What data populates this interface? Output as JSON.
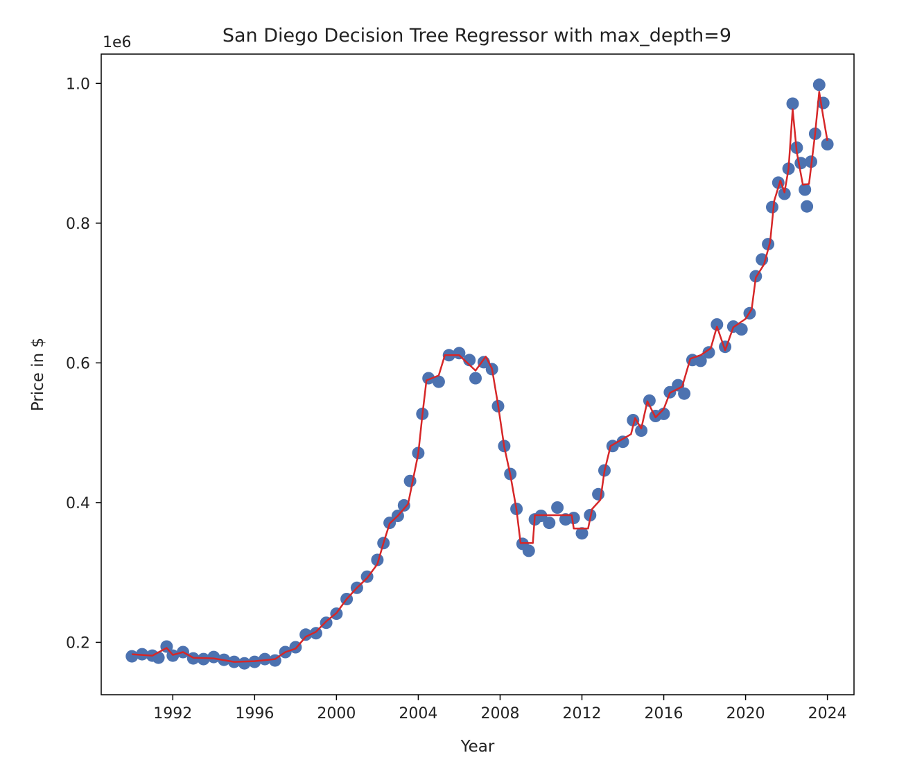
{
  "chart_data": {
    "type": "scatter",
    "title": "San Diego Decision Tree Regressor with max_depth=9",
    "xlabel": "Year",
    "ylabel": "Price in $",
    "y_multiplier_label": "1e6",
    "xlim": [
      1988.5,
      2025.3
    ],
    "ylim": [
      125000,
      1042000
    ],
    "x_ticks": [
      1992,
      1996,
      2000,
      2004,
      2008,
      2012,
      2016,
      2020,
      2024
    ],
    "x_tick_labels": [
      "1992",
      "1996",
      "2000",
      "2004",
      "2008",
      "2012",
      "2016",
      "2020",
      "2024"
    ],
    "y_ticks": [
      200000,
      400000,
      600000,
      800000,
      1000000
    ],
    "y_tick_labels": [
      "0.2",
      "0.4",
      "0.6",
      "0.8",
      "1.0"
    ],
    "grid": false,
    "colors": {
      "scatter": "#4c72b0",
      "fit_line": "#d62728",
      "axes": "#000000"
    },
    "series": [
      {
        "kind": "scatter",
        "points": [
          [
            1990.0,
            180000
          ],
          [
            1990.5,
            183000
          ],
          [
            1991.0,
            181000
          ],
          [
            1991.3,
            178000
          ],
          [
            1991.7,
            194000
          ],
          [
            1992.0,
            181000
          ],
          [
            1992.5,
            186000
          ],
          [
            1993.0,
            177000
          ],
          [
            1993.5,
            176000
          ],
          [
            1994.0,
            179000
          ],
          [
            1994.5,
            175000
          ],
          [
            1995.0,
            172000
          ],
          [
            1995.5,
            170000
          ],
          [
            1996.0,
            172000
          ],
          [
            1996.5,
            176000
          ],
          [
            1997.0,
            174000
          ],
          [
            1997.5,
            186000
          ],
          [
            1998.0,
            193000
          ],
          [
            1998.5,
            211000
          ],
          [
            1999.0,
            213000
          ],
          [
            1999.5,
            228000
          ],
          [
            2000.0,
            241000
          ],
          [
            2000.5,
            262000
          ],
          [
            2001.0,
            278000
          ],
          [
            2001.5,
            294000
          ],
          [
            2002.0,
            318000
          ],
          [
            2002.3,
            342000
          ],
          [
            2002.6,
            371000
          ],
          [
            2003.0,
            381000
          ],
          [
            2003.3,
            396000
          ],
          [
            2003.6,
            431000
          ],
          [
            2004.0,
            471000
          ],
          [
            2004.2,
            527000
          ],
          [
            2004.5,
            578000
          ],
          [
            2005.0,
            573000
          ],
          [
            2005.5,
            611000
          ],
          [
            2006.0,
            614000
          ],
          [
            2006.5,
            604000
          ],
          [
            2006.8,
            578000
          ],
          [
            2007.2,
            601000
          ],
          [
            2007.6,
            591000
          ],
          [
            2007.9,
            538000
          ],
          [
            2008.2,
            481000
          ],
          [
            2008.5,
            441000
          ],
          [
            2008.8,
            391000
          ],
          [
            2009.1,
            341000
          ],
          [
            2009.4,
            331000
          ],
          [
            2009.7,
            376000
          ],
          [
            2010.0,
            381000
          ],
          [
            2010.4,
            371000
          ],
          [
            2010.8,
            393000
          ],
          [
            2011.2,
            376000
          ],
          [
            2011.6,
            378000
          ],
          [
            2012.0,
            356000
          ],
          [
            2012.4,
            382000
          ],
          [
            2012.8,
            412000
          ],
          [
            2013.1,
            446000
          ],
          [
            2013.5,
            481000
          ],
          [
            2014.0,
            487000
          ],
          [
            2014.5,
            518000
          ],
          [
            2014.9,
            503000
          ],
          [
            2015.3,
            546000
          ],
          [
            2015.6,
            524000
          ],
          [
            2016.0,
            527000
          ],
          [
            2016.3,
            558000
          ],
          [
            2016.7,
            568000
          ],
          [
            2017.0,
            556000
          ],
          [
            2017.4,
            604000
          ],
          [
            2017.8,
            603000
          ],
          [
            2018.2,
            615000
          ],
          [
            2018.6,
            655000
          ],
          [
            2019.0,
            623000
          ],
          [
            2019.4,
            652000
          ],
          [
            2019.8,
            648000
          ],
          [
            2020.2,
            671000
          ],
          [
            2020.5,
            724000
          ],
          [
            2020.8,
            748000
          ],
          [
            2021.1,
            770000
          ],
          [
            2021.3,
            823000
          ],
          [
            2021.6,
            858000
          ],
          [
            2021.9,
            842000
          ],
          [
            2022.1,
            878000
          ],
          [
            2022.3,
            971000
          ],
          [
            2022.5,
            908000
          ],
          [
            2022.7,
            886000
          ],
          [
            2022.9,
            848000
          ],
          [
            2023.0,
            824000
          ],
          [
            2023.2,
            888000
          ],
          [
            2023.4,
            928000
          ],
          [
            2023.6,
            998000
          ],
          [
            2023.8,
            972000
          ],
          [
            2024.0,
            913000
          ]
        ]
      },
      {
        "kind": "line",
        "points": [
          [
            1990.0,
            183000
          ],
          [
            1991.0,
            181000
          ],
          [
            1991.7,
            192000
          ],
          [
            1992.0,
            182000
          ],
          [
            1992.5,
            186000
          ],
          [
            1993.0,
            178000
          ],
          [
            1994.0,
            177000
          ],
          [
            1995.0,
            172000
          ],
          [
            1996.0,
            173000
          ],
          [
            1997.0,
            176000
          ],
          [
            1997.5,
            186000
          ],
          [
            1998.0,
            191000
          ],
          [
            1998.5,
            208000
          ],
          [
            1999.0,
            215000
          ],
          [
            1999.5,
            230000
          ],
          [
            2000.0,
            242000
          ],
          [
            2000.5,
            262000
          ],
          [
            2001.0,
            278000
          ],
          [
            2001.5,
            292000
          ],
          [
            2002.0,
            312000
          ],
          [
            2002.3,
            342000
          ],
          [
            2002.6,
            370000
          ],
          [
            2003.0,
            381000
          ],
          [
            2003.5,
            398000
          ],
          [
            2004.0,
            470000
          ],
          [
            2004.2,
            525000
          ],
          [
            2004.4,
            575000
          ],
          [
            2005.0,
            582000
          ],
          [
            2005.3,
            611000
          ],
          [
            2006.0,
            611000
          ],
          [
            2006.8,
            589000
          ],
          [
            2007.3,
            609000
          ],
          [
            2007.6,
            592000
          ],
          [
            2007.9,
            540000
          ],
          [
            2008.2,
            480000
          ],
          [
            2008.5,
            440000
          ],
          [
            2008.8,
            390000
          ],
          [
            2009.0,
            342000
          ],
          [
            2009.6,
            342000
          ],
          [
            2009.7,
            382000
          ],
          [
            2011.5,
            382000
          ],
          [
            2011.6,
            363000
          ],
          [
            2012.3,
            363000
          ],
          [
            2012.5,
            391000
          ],
          [
            2012.9,
            404000
          ],
          [
            2013.1,
            445000
          ],
          [
            2013.4,
            481000
          ],
          [
            2014.4,
            498000
          ],
          [
            2014.6,
            521000
          ],
          [
            2014.9,
            506000
          ],
          [
            2015.2,
            545000
          ],
          [
            2015.6,
            522000
          ],
          [
            2016.0,
            534000
          ],
          [
            2016.3,
            557000
          ],
          [
            2016.9,
            566000
          ],
          [
            2017.3,
            606000
          ],
          [
            2017.8,
            611000
          ],
          [
            2018.3,
            621000
          ],
          [
            2018.6,
            652000
          ],
          [
            2019.0,
            618000
          ],
          [
            2019.4,
            651000
          ],
          [
            2020.0,
            663000
          ],
          [
            2020.3,
            677000
          ],
          [
            2020.5,
            722000
          ],
          [
            2020.9,
            741000
          ],
          [
            2021.2,
            773000
          ],
          [
            2021.4,
            832000
          ],
          [
            2021.7,
            861000
          ],
          [
            2021.9,
            844000
          ],
          [
            2022.1,
            878000
          ],
          [
            2022.3,
            963000
          ],
          [
            2022.5,
            902000
          ],
          [
            2022.8,
            855000
          ],
          [
            2023.1,
            856000
          ],
          [
            2023.4,
            928000
          ],
          [
            2023.6,
            988000
          ],
          [
            2023.8,
            952000
          ],
          [
            2024.0,
            918000
          ]
        ]
      }
    ]
  }
}
